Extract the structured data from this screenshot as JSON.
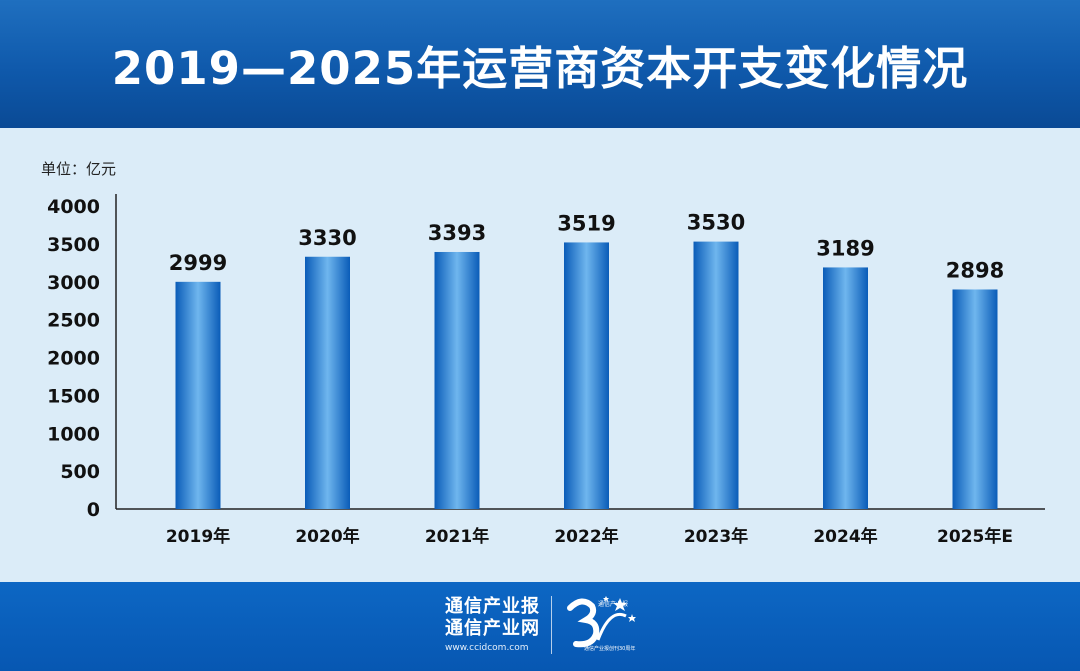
{
  "header": {
    "title": "2019—2025年运营商资本开支变化情况"
  },
  "unit_label": "单位：亿元",
  "footer": {
    "brand_line1": "通信产业报",
    "brand_line2": "通信产业网",
    "brand_url": "www.ccidcom.com",
    "anniversary_text": "通信产业报",
    "anniversary_tagline": "通信产业报创刊30周年"
  },
  "colors": {
    "header_bg": "#0f59ab",
    "page_bg": "#dbecf8",
    "bar_dark": "#0a5cb8",
    "bar_light": "#6fb6ee",
    "footer_bg": "#0757b2"
  },
  "chart_data": {
    "type": "bar",
    "title": "2019—2025年运营商资本开支变化情况",
    "categories": [
      "2019年",
      "2020年",
      "2021年",
      "2022年",
      "2023年",
      "2024年",
      "2025年E"
    ],
    "values": [
      2999,
      3330,
      3393,
      3519,
      3530,
      3189,
      2898
    ],
    "data_labels": [
      "2999",
      "3330",
      "3393",
      "3519",
      "3530",
      "3189",
      "2898"
    ],
    "ylim": [
      0,
      4000
    ],
    "yticks": [
      0,
      500,
      1000,
      1500,
      2000,
      2500,
      3000,
      3500,
      4000
    ],
    "ytick_labels": [
      "0",
      "500",
      "1000",
      "1500",
      "2000",
      "2500",
      "3000",
      "3500",
      "4000"
    ],
    "xlabel": "",
    "ylabel": "",
    "grid": false,
    "legend": "none"
  }
}
